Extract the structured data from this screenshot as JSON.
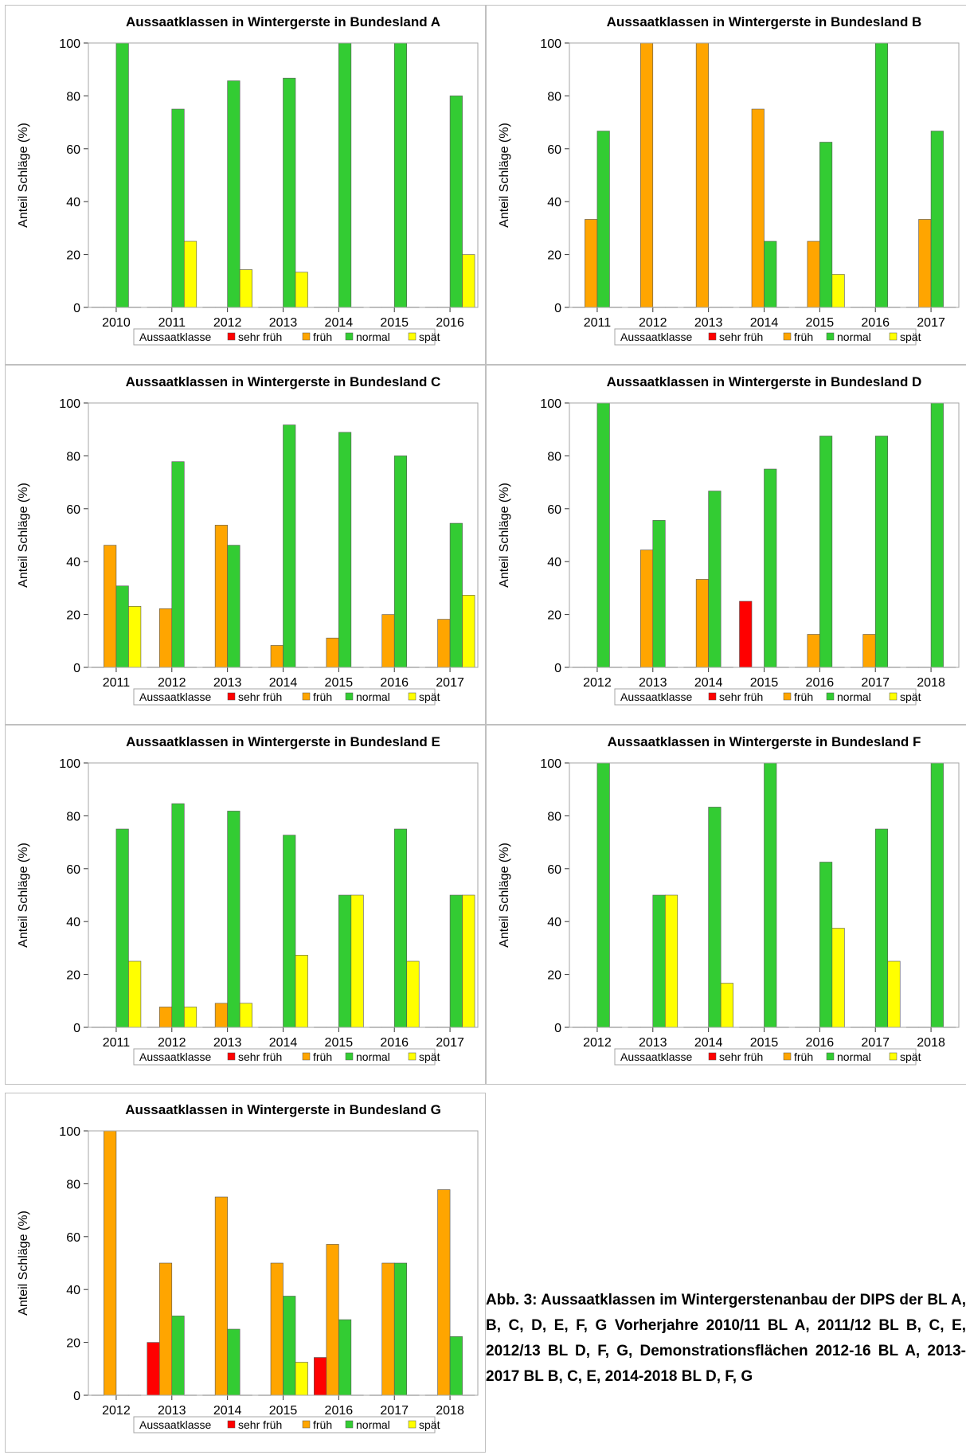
{
  "colors": {
    "sehr früh": "#ff0000",
    "früh": "#ffa500",
    "normal": "#33cc33",
    "spät": "#ffff00",
    "frame": "#a6a6a6",
    "panel_border": "#c0c0c0"
  },
  "legend": {
    "title": "Aussaatklasse",
    "items": [
      "sehr früh",
      "früh",
      "normal",
      "spät"
    ]
  },
  "caption": "Abb. 3: Aussaatklassen im Wintergerstenanbau der DIPS der BL A, B, C, D, E, F, G Vorherjahre 2010/11 BL A, 2011/12 BL B, C, E, 2012/13 BL D, F, G, Demonstrationsflächen 2012-16 BL A, 2013-2017 BL B, C, E, 2014-2018 BL D, F, G",
  "chart_data": [
    {
      "type": "bar",
      "title": "Aussaatklassen in Wintergerste in Bundesland A",
      "ylabel": "Anteil Schläge (%)",
      "ylim": [
        0,
        100
      ],
      "yticks": [
        0,
        20,
        40,
        60,
        80,
        100
      ],
      "categories": [
        "2010",
        "2011",
        "2012",
        "2013",
        "2014",
        "2015",
        "2016"
      ],
      "series": [
        {
          "name": "sehr früh",
          "values": [
            0,
            0,
            0,
            0,
            0,
            0,
            0
          ]
        },
        {
          "name": "früh",
          "values": [
            0,
            0,
            0,
            0,
            0,
            0,
            0
          ]
        },
        {
          "name": "normal",
          "values": [
            100,
            75,
            85.7,
            86.7,
            100,
            100,
            80
          ]
        },
        {
          "name": "spät",
          "values": [
            0,
            25,
            14.3,
            13.3,
            0,
            0,
            20
          ]
        }
      ]
    },
    {
      "type": "bar",
      "title": "Aussaatklassen in Wintergerste in Bundesland B",
      "ylabel": "Anteil Schläge (%)",
      "ylim": [
        0,
        100
      ],
      "yticks": [
        0,
        20,
        40,
        60,
        80,
        100
      ],
      "categories": [
        "2011",
        "2012",
        "2013",
        "2014",
        "2015",
        "2016",
        "2017"
      ],
      "series": [
        {
          "name": "sehr früh",
          "values": [
            0,
            0,
            0,
            0,
            0,
            0,
            0
          ]
        },
        {
          "name": "früh",
          "values": [
            33.3,
            100,
            100,
            75,
            25,
            0,
            33.3
          ]
        },
        {
          "name": "normal",
          "values": [
            66.7,
            0,
            0,
            25,
            62.5,
            100,
            66.7
          ]
        },
        {
          "name": "spät",
          "values": [
            0,
            0,
            0,
            0,
            12.5,
            0,
            0
          ]
        }
      ]
    },
    {
      "type": "bar",
      "title": "Aussaatklassen in Wintergerste in Bundesland C",
      "ylabel": "Anteil Schläge (%)",
      "ylim": [
        0,
        100
      ],
      "yticks": [
        0,
        20,
        40,
        60,
        80,
        100
      ],
      "categories": [
        "2011",
        "2012",
        "2013",
        "2014",
        "2015",
        "2016",
        "2017"
      ],
      "series": [
        {
          "name": "sehr früh",
          "values": [
            0,
            0,
            0,
            0,
            0,
            0,
            0
          ]
        },
        {
          "name": "früh",
          "values": [
            46.2,
            22.2,
            53.8,
            8.3,
            11.1,
            20,
            18.2
          ]
        },
        {
          "name": "normal",
          "values": [
            30.8,
            77.8,
            46.2,
            91.7,
            88.9,
            80,
            54.5
          ]
        },
        {
          "name": "spät",
          "values": [
            23.1,
            0,
            0,
            0,
            0,
            0,
            27.3
          ]
        }
      ]
    },
    {
      "type": "bar",
      "title": "Aussaatklassen in Wintergerste in Bundesland D",
      "ylabel": "Anteil Schläge (%)",
      "ylim": [
        0,
        100
      ],
      "yticks": [
        0,
        20,
        40,
        60,
        80,
        100
      ],
      "categories": [
        "2012",
        "2013",
        "2014",
        "2015",
        "2016",
        "2017",
        "2018"
      ],
      "series": [
        {
          "name": "sehr früh",
          "values": [
            0,
            0,
            0,
            25,
            0,
            0,
            0
          ]
        },
        {
          "name": "früh",
          "values": [
            0,
            44.4,
            33.3,
            0,
            12.5,
            12.5,
            0
          ]
        },
        {
          "name": "normal",
          "values": [
            100,
            55.6,
            66.7,
            75,
            87.5,
            87.5,
            100
          ]
        },
        {
          "name": "spät",
          "values": [
            0,
            0,
            0,
            0,
            0,
            0,
            0
          ]
        }
      ]
    },
    {
      "type": "bar",
      "title": "Aussaatklassen in Wintergerste in Bundesland E",
      "ylabel": "Anteil Schläge (%)",
      "ylim": [
        0,
        100
      ],
      "yticks": [
        0,
        20,
        40,
        60,
        80,
        100
      ],
      "categories": [
        "2011",
        "2012",
        "2013",
        "2014",
        "2015",
        "2016",
        "2017"
      ],
      "series": [
        {
          "name": "sehr früh",
          "values": [
            0,
            0,
            0,
            0,
            0,
            0,
            0
          ]
        },
        {
          "name": "früh",
          "values": [
            0,
            7.7,
            9.1,
            0,
            0,
            0,
            0
          ]
        },
        {
          "name": "normal",
          "values": [
            75,
            84.6,
            81.8,
            72.7,
            50,
            75,
            50
          ]
        },
        {
          "name": "spät",
          "values": [
            25,
            7.7,
            9.1,
            27.3,
            50,
            25,
            50
          ]
        }
      ]
    },
    {
      "type": "bar",
      "title": "Aussaatklassen in Wintergerste in Bundesland F",
      "ylabel": "Anteil Schläge (%)",
      "ylim": [
        0,
        100
      ],
      "yticks": [
        0,
        20,
        40,
        60,
        80,
        100
      ],
      "categories": [
        "2012",
        "2013",
        "2014",
        "2015",
        "2016",
        "2017",
        "2018"
      ],
      "series": [
        {
          "name": "sehr früh",
          "values": [
            0,
            0,
            0,
            0,
            0,
            0,
            0
          ]
        },
        {
          "name": "früh",
          "values": [
            0,
            0,
            0,
            0,
            0,
            0,
            0
          ]
        },
        {
          "name": "normal",
          "values": [
            100,
            50,
            83.3,
            100,
            62.5,
            75,
            100
          ]
        },
        {
          "name": "spät",
          "values": [
            0,
            50,
            16.7,
            0,
            37.5,
            25,
            0
          ]
        }
      ]
    },
    {
      "type": "bar",
      "title": "Aussaatklassen in Wintergerste in Bundesland G",
      "ylabel": "Anteil Schläge (%)",
      "ylim": [
        0,
        100
      ],
      "yticks": [
        0,
        20,
        40,
        60,
        80,
        100
      ],
      "categories": [
        "2012",
        "2013",
        "2014",
        "2015",
        "2016",
        "2017",
        "2018"
      ],
      "series": [
        {
          "name": "sehr früh",
          "values": [
            0,
            20,
            0,
            0,
            14.3,
            0,
            0
          ]
        },
        {
          "name": "früh",
          "values": [
            100,
            50,
            75,
            50,
            57.1,
            50,
            77.8
          ]
        },
        {
          "name": "normal",
          "values": [
            0,
            30,
            25,
            37.5,
            28.6,
            50,
            22.2
          ]
        },
        {
          "name": "spät",
          "values": [
            0,
            0,
            0,
            12.5,
            0,
            0,
            0
          ]
        }
      ]
    }
  ]
}
